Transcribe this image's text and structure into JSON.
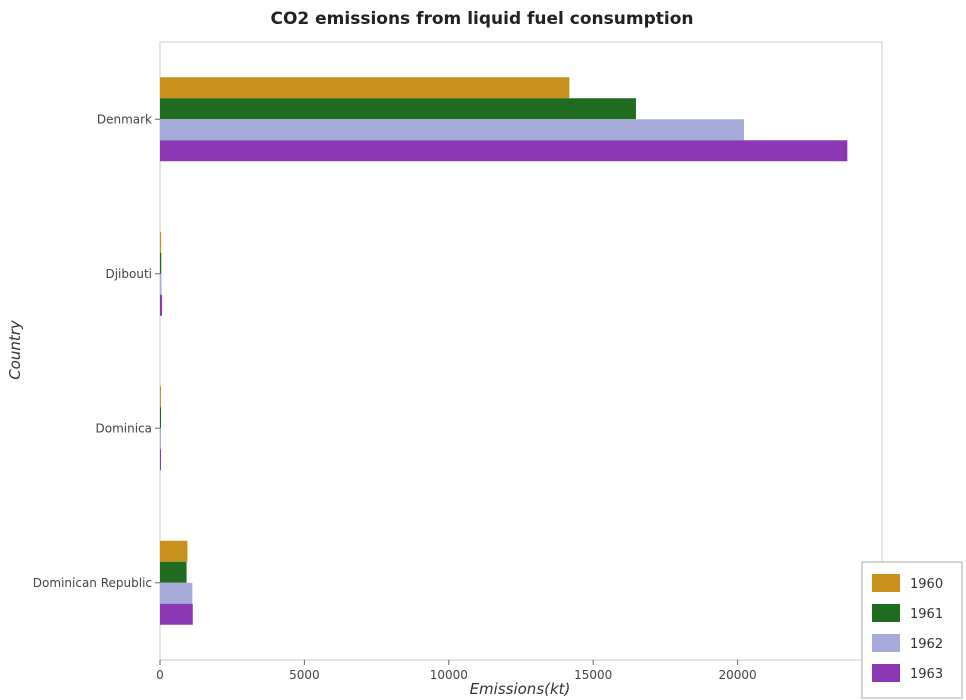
{
  "chart_data": {
    "type": "bar",
    "orientation": "horizontal",
    "title": "CO2 emissions from liquid fuel consumption",
    "xlabel": "Emissions(kt)",
    "ylabel": "Country",
    "xlim": [
      0,
      25000
    ],
    "xticks": [
      0,
      5000,
      10000,
      15000,
      20000,
      25000
    ],
    "xtick_labels": [
      "0",
      "5000",
      "10000",
      "15000",
      "20000",
      "25000"
    ],
    "categories": [
      "Denmark",
      "Djibouti",
      "Dominica",
      "Dominican Republic"
    ],
    "series": [
      {
        "name": "1960",
        "color": "#c8911e",
        "values": [
          14175,
          40,
          11,
          950
        ]
      },
      {
        "name": "1961",
        "color": "#1f6b1f",
        "values": [
          16480,
          44,
          11,
          920
        ]
      },
      {
        "name": "1962",
        "color": "#a6abd9",
        "values": [
          20220,
          51,
          11,
          1120
        ]
      },
      {
        "name": "1963",
        "color": "#8b38b5",
        "values": [
          23800,
          70,
          15,
          1135
        ]
      }
    ],
    "grid": false,
    "legend_position": "bottom-right"
  }
}
